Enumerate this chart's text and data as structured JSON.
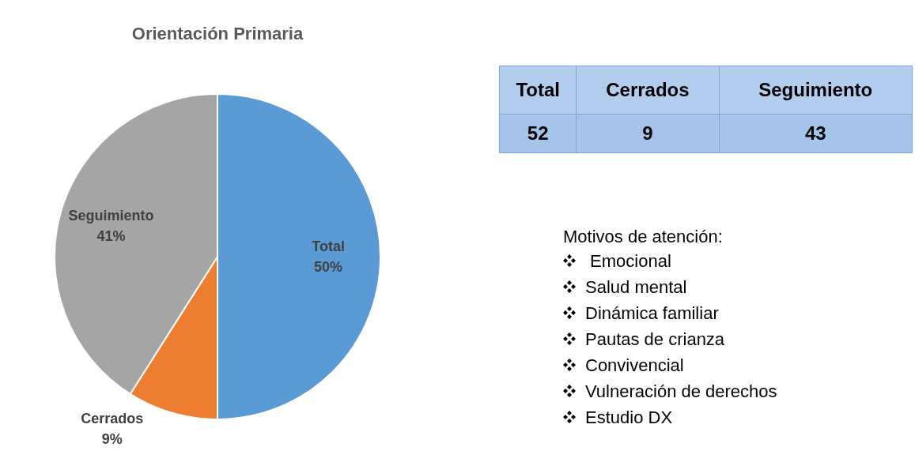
{
  "chart_data": [
    {
      "type": "pie",
      "title": "Orientación Primaria",
      "categories": [
        "Total",
        "Cerrados",
        "Seguimiento"
      ],
      "values": [
        50,
        9,
        41
      ],
      "colors": [
        "#5b9bd5",
        "#ed7d31",
        "#a5a5a5"
      ],
      "value_labels": [
        "50%",
        "9%",
        "41%"
      ],
      "legend": false
    },
    {
      "type": "other",
      "categories": [
        "Total",
        "Cerrados",
        "Seguimiento"
      ],
      "values": [
        52,
        9,
        43
      ],
      "data_labels": true
    },
    {
      "type": "other",
      "title": "Motivos de atención:",
      "annotations": [
        " Emocional",
        "Salud mental",
        "Dinámica familiar",
        "Pautas de crianza",
        "Convivencial",
        "Vulneración de derechos",
        "Estudio DX"
      ]
    }
  ]
}
